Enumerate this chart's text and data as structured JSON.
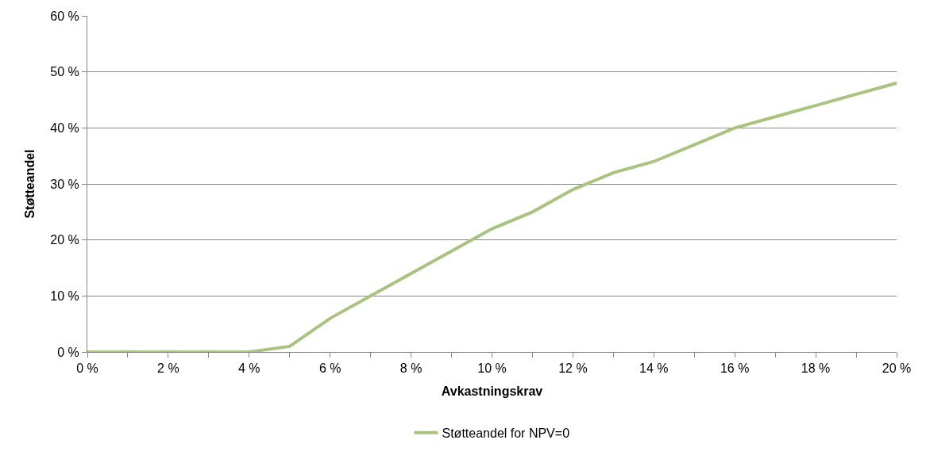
{
  "chart_data": {
    "type": "line",
    "xlabel": "Avkastningskrav",
    "ylabel": "Støtteandel",
    "x": [
      0,
      1,
      2,
      3,
      4,
      5,
      6,
      7,
      8,
      9,
      10,
      11,
      12,
      13,
      14,
      15,
      16,
      17,
      18,
      19,
      20
    ],
    "series": [
      {
        "name": "Støtteandel for NPV=0",
        "color": "#a8c47e",
        "values": [
          0,
          0,
          0,
          0,
          0,
          1,
          6,
          10,
          14,
          18,
          22,
          25,
          29,
          32,
          34,
          37,
          40,
          42,
          44,
          46,
          48
        ]
      }
    ],
    "xlim": [
      0,
      20
    ],
    "xticks": [
      {
        "value": 0,
        "label": "0 %"
      },
      {
        "value": 1,
        "label": null
      },
      {
        "value": 2,
        "label": "2 %"
      },
      {
        "value": 3,
        "label": null
      },
      {
        "value": 4,
        "label": "4 %"
      },
      {
        "value": 5,
        "label": null
      },
      {
        "value": 6,
        "label": "6 %"
      },
      {
        "value": 7,
        "label": null
      },
      {
        "value": 8,
        "label": "8 %"
      },
      {
        "value": 9,
        "label": null
      },
      {
        "value": 10,
        "label": "10 %"
      },
      {
        "value": 11,
        "label": null
      },
      {
        "value": 12,
        "label": "12 %"
      },
      {
        "value": 13,
        "label": null
      },
      {
        "value": 14,
        "label": "14 %"
      },
      {
        "value": 15,
        "label": null
      },
      {
        "value": 16,
        "label": "16 %"
      },
      {
        "value": 17,
        "label": null
      },
      {
        "value": 18,
        "label": "18 %"
      },
      {
        "value": 19,
        "label": null
      },
      {
        "value": 20,
        "label": "20 %"
      }
    ],
    "ylim": [
      0,
      60
    ],
    "yticks": [
      {
        "value": 0,
        "label": "0 %"
      },
      {
        "value": 10,
        "label": "10 %"
      },
      {
        "value": 20,
        "label": "20 %"
      },
      {
        "value": 30,
        "label": "30 %"
      },
      {
        "value": 40,
        "label": "40 %"
      },
      {
        "value": 50,
        "label": "50 %"
      },
      {
        "value": 60,
        "label": "60 %"
      }
    ],
    "grid": "y",
    "legend": "bottom",
    "marker": "none",
    "line_style": "solid"
  }
}
